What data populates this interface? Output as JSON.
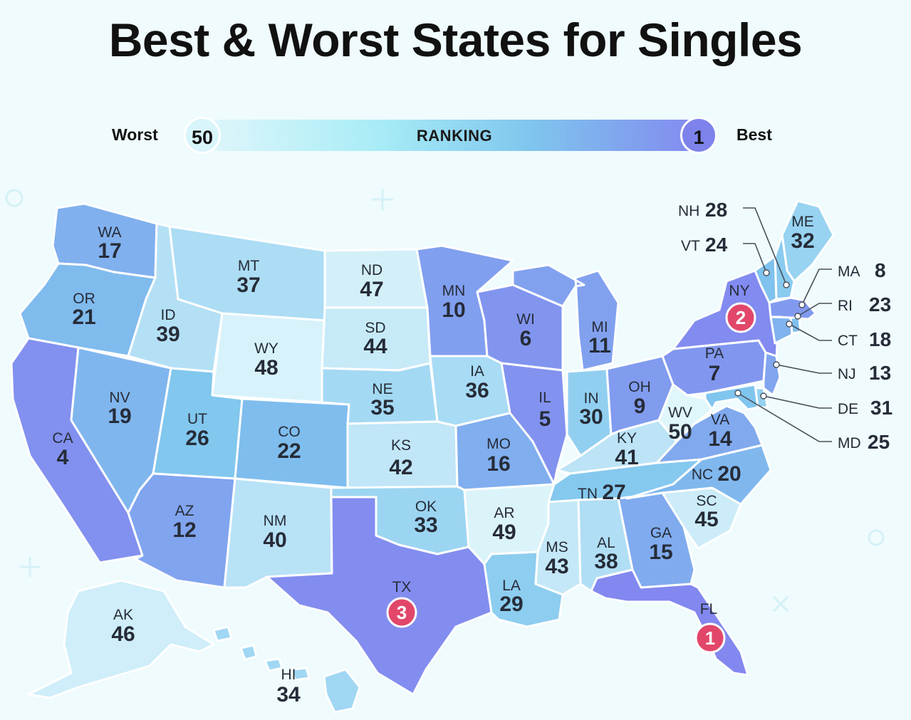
{
  "title": "Best & Worst States for Singles",
  "legend": {
    "worst_label": "Worst",
    "best_label": "Best",
    "worst_value": "50",
    "best_value": "1",
    "bar_label": "RANKING"
  },
  "colors": {
    "best": "#8288ef",
    "mid": "#7fc6ee",
    "worst": "#dff6fb",
    "badge": "#e2476a",
    "background": "#effbfd"
  },
  "states": {
    "WA": {
      "abbr": "WA",
      "rank": "17"
    },
    "OR": {
      "abbr": "OR",
      "rank": "21"
    },
    "CA": {
      "abbr": "CA",
      "rank": "4"
    },
    "NV": {
      "abbr": "NV",
      "rank": "19"
    },
    "ID": {
      "abbr": "ID",
      "rank": "39"
    },
    "MT": {
      "abbr": "MT",
      "rank": "37"
    },
    "WY": {
      "abbr": "WY",
      "rank": "48"
    },
    "UT": {
      "abbr": "UT",
      "rank": "26"
    },
    "CO": {
      "abbr": "CO",
      "rank": "22"
    },
    "AZ": {
      "abbr": "AZ",
      "rank": "12"
    },
    "NM": {
      "abbr": "NM",
      "rank": "40"
    },
    "ND": {
      "abbr": "ND",
      "rank": "47"
    },
    "SD": {
      "abbr": "SD",
      "rank": "44"
    },
    "NE": {
      "abbr": "NE",
      "rank": "35"
    },
    "KS": {
      "abbr": "KS",
      "rank": "42"
    },
    "OK": {
      "abbr": "OK",
      "rank": "33"
    },
    "TX": {
      "abbr": "TX",
      "rank": "3"
    },
    "MN": {
      "abbr": "MN",
      "rank": "10"
    },
    "IA": {
      "abbr": "IA",
      "rank": "36"
    },
    "MO": {
      "abbr": "MO",
      "rank": "16"
    },
    "AR": {
      "abbr": "AR",
      "rank": "49"
    },
    "LA": {
      "abbr": "LA",
      "rank": "29"
    },
    "WI": {
      "abbr": "WI",
      "rank": "6"
    },
    "IL": {
      "abbr": "IL",
      "rank": "5"
    },
    "MI": {
      "abbr": "MI",
      "rank": "11"
    },
    "IN": {
      "abbr": "IN",
      "rank": "30"
    },
    "OH": {
      "abbr": "OH",
      "rank": "9"
    },
    "KY": {
      "abbr": "KY",
      "rank": "41"
    },
    "TN": {
      "abbr": "TN",
      "rank": "27"
    },
    "MS": {
      "abbr": "MS",
      "rank": "43"
    },
    "AL": {
      "abbr": "AL",
      "rank": "38"
    },
    "GA": {
      "abbr": "GA",
      "rank": "15"
    },
    "FL": {
      "abbr": "FL",
      "rank": "1"
    },
    "SC": {
      "abbr": "SC",
      "rank": "45"
    },
    "NC": {
      "abbr": "NC",
      "rank": "20"
    },
    "VA": {
      "abbr": "VA",
      "rank": "14"
    },
    "WV": {
      "abbr": "WV",
      "rank": "50"
    },
    "PA": {
      "abbr": "PA",
      "rank": "7"
    },
    "NY": {
      "abbr": "NY",
      "rank": "2"
    },
    "ME": {
      "abbr": "ME",
      "rank": "32"
    },
    "NH": {
      "abbr": "NH",
      "rank": "28"
    },
    "VT": {
      "abbr": "VT",
      "rank": "24"
    },
    "MA": {
      "abbr": "MA",
      "rank": "8"
    },
    "RI": {
      "abbr": "RI",
      "rank": "23"
    },
    "CT": {
      "abbr": "CT",
      "rank": "18"
    },
    "NJ": {
      "abbr": "NJ",
      "rank": "13"
    },
    "DE": {
      "abbr": "DE",
      "rank": "31"
    },
    "MD": {
      "abbr": "MD",
      "rank": "25"
    },
    "AK": {
      "abbr": "AK",
      "rank": "46"
    },
    "HI": {
      "abbr": "HI",
      "rank": "34"
    }
  },
  "badges": {
    "FL": "1",
    "NY": "2",
    "TX": "3"
  }
}
